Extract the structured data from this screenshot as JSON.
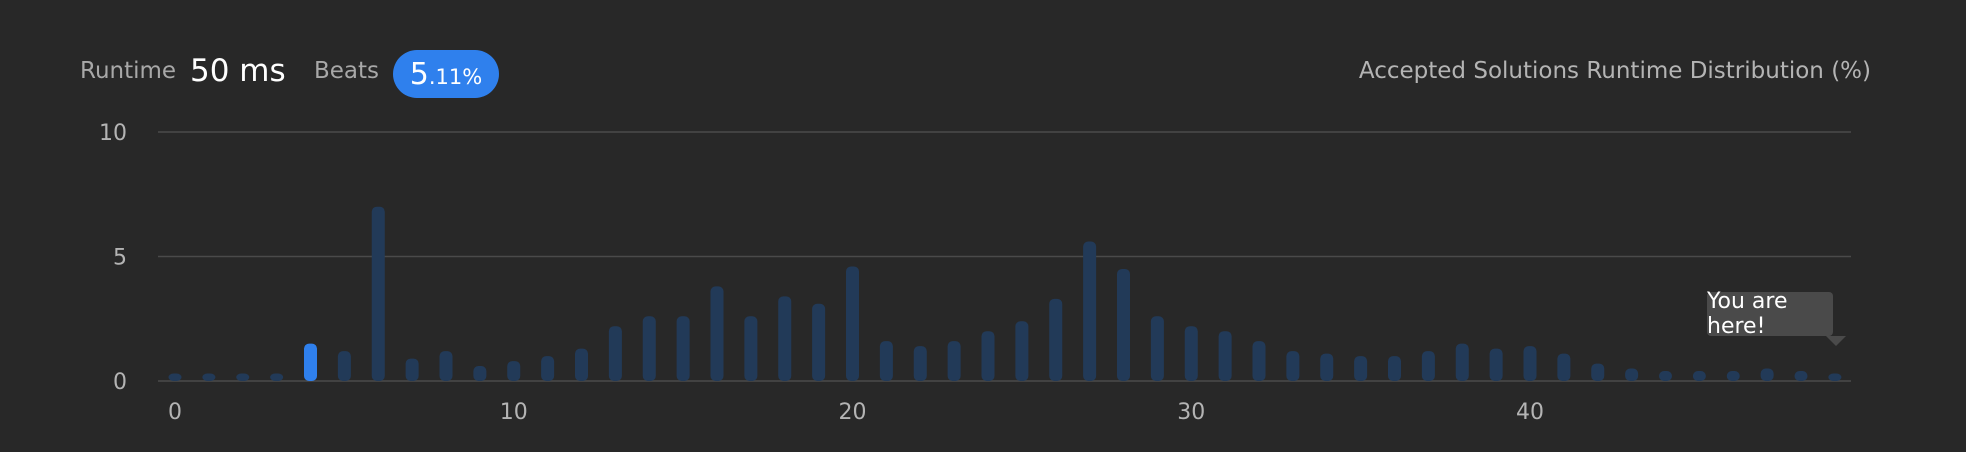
{
  "header": {
    "runtime_label": "Runtime",
    "runtime_value": "50 ms",
    "beats_label": "Beats",
    "beats_int": "5",
    "beats_dec": ".11%",
    "chart_title": "Accepted Solutions Runtime Distribution (%)"
  },
  "tooltip": {
    "text": "You are here!"
  },
  "colors": {
    "bar": "#223a58",
    "highlight": "#2f80ed",
    "grid": "#4a4a4a",
    "axis_text": "#b4b4b4"
  },
  "chart_data": {
    "type": "bar",
    "title": "Accepted Solutions Runtime Distribution (%)",
    "xlabel": "",
    "ylabel": "",
    "ylim": [
      0,
      10
    ],
    "xlim": [
      0,
      49
    ],
    "yticks": [
      0,
      5,
      10
    ],
    "xticks": [
      0,
      10,
      20,
      30,
      40
    ],
    "grid": true,
    "highlight_index": 4,
    "x": [
      0,
      1,
      2,
      3,
      4,
      5,
      6,
      7,
      8,
      9,
      10,
      11,
      12,
      13,
      14,
      15,
      16,
      17,
      18,
      19,
      20,
      21,
      22,
      23,
      24,
      25,
      26,
      27,
      28,
      29,
      30,
      31,
      32,
      33,
      34,
      35,
      36,
      37,
      38,
      39,
      40,
      41,
      42,
      43,
      44,
      45,
      46,
      47,
      48,
      49
    ],
    "values": [
      0.3,
      0.3,
      0.3,
      0.3,
      1.5,
      1.2,
      7.0,
      0.9,
      1.2,
      0.6,
      0.8,
      1.0,
      1.3,
      2.2,
      2.6,
      2.6,
      3.8,
      2.6,
      3.4,
      3.1,
      4.6,
      1.6,
      1.4,
      1.6,
      2.0,
      2.4,
      3.3,
      5.6,
      4.5,
      2.6,
      2.2,
      2.0,
      1.6,
      1.2,
      1.1,
      1.0,
      1.0,
      1.2,
      1.5,
      1.3,
      1.4,
      1.1,
      0.7,
      0.5,
      0.4,
      0.4,
      0.4,
      0.5,
      0.4,
      0.3
    ]
  }
}
